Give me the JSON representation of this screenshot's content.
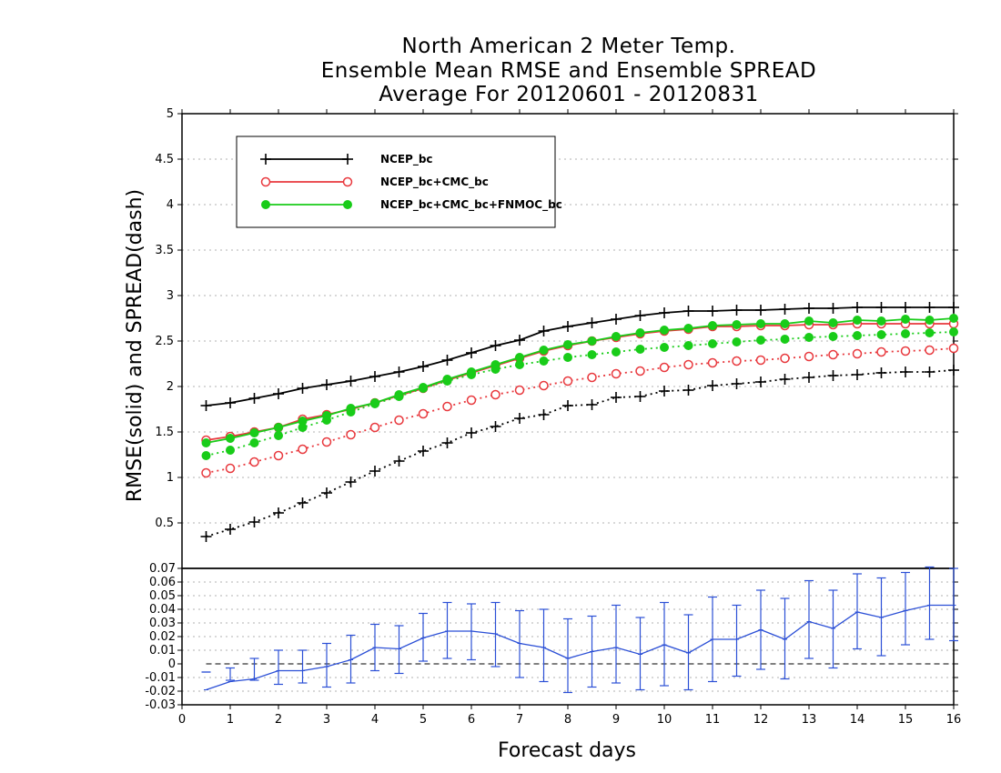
{
  "title_lines": [
    "North American 2 Meter Temp.",
    "Ensemble Mean RMSE and Ensemble SPREAD",
    "Average For 20120601 - 20120831"
  ],
  "chart_data": [
    {
      "type": "line",
      "title": "North American 2 Meter Temp. Ensemble Mean RMSE and Ensemble SPREAD Average For 20120601 - 20120831",
      "ylabel": "RMSE(solid) and SPREAD(dash)",
      "xlabel": "",
      "xlim": [
        0,
        16
      ],
      "ylim": [
        0.5,
        5
      ],
      "yticks": [
        0.5,
        1,
        1.5,
        2,
        2.5,
        3,
        3.5,
        4,
        4.5,
        5
      ],
      "grid": true,
      "legend_position": "top-left",
      "x": [
        0.5,
        1,
        1.5,
        2,
        2.5,
        3,
        3.5,
        4,
        4.5,
        5,
        5.5,
        6,
        6.5,
        7,
        7.5,
        8,
        8.5,
        9,
        9.5,
        10,
        10.5,
        11,
        11.5,
        12,
        12.5,
        13,
        13.5,
        14,
        14.5,
        15,
        15.5,
        16
      ],
      "series": [
        {
          "name": "NCEP_bc",
          "metric": "RMSE",
          "style": "solid",
          "marker": "plus",
          "color": "#000000",
          "values": [
            1.79,
            1.82,
            1.87,
            1.92,
            1.98,
            2.02,
            2.06,
            2.11,
            2.16,
            2.22,
            2.29,
            2.37,
            2.45,
            2.51,
            2.61,
            2.66,
            2.7,
            2.74,
            2.78,
            2.81,
            2.83,
            2.83,
            2.84,
            2.84,
            2.85,
            2.86,
            2.86,
            2.87,
            2.87,
            2.87,
            2.87,
            2.87
          ]
        },
        {
          "name": "NCEP_bc+CMC_bc",
          "metric": "RMSE",
          "style": "solid",
          "marker": "open-circle",
          "color": "#e8383d",
          "values": [
            1.41,
            1.45,
            1.5,
            1.55,
            1.64,
            1.69,
            1.75,
            1.82,
            1.9,
            1.98,
            2.07,
            2.15,
            2.23,
            2.31,
            2.39,
            2.45,
            2.5,
            2.54,
            2.58,
            2.61,
            2.63,
            2.66,
            2.66,
            2.67,
            2.67,
            2.68,
            2.68,
            2.69,
            2.69,
            2.69,
            2.69,
            2.69
          ]
        },
        {
          "name": "NCEP_bc+CMC_bc+FNMOC_bc",
          "metric": "RMSE",
          "style": "solid",
          "marker": "filled-circle",
          "color": "#19cc19",
          "values": [
            1.38,
            1.43,
            1.49,
            1.55,
            1.62,
            1.68,
            1.76,
            1.82,
            1.91,
            1.99,
            2.08,
            2.16,
            2.24,
            2.32,
            2.4,
            2.46,
            2.5,
            2.55,
            2.59,
            2.62,
            2.64,
            2.67,
            2.68,
            2.69,
            2.69,
            2.72,
            2.7,
            2.73,
            2.72,
            2.74,
            2.73,
            2.75
          ]
        },
        {
          "name": "NCEP_bc",
          "metric": "SPREAD",
          "style": "dash",
          "marker": "plus",
          "color": "#000000",
          "values": [
            0.35,
            0.43,
            0.51,
            0.61,
            0.72,
            0.83,
            0.95,
            1.07,
            1.18,
            1.29,
            1.38,
            1.49,
            1.56,
            1.65,
            1.69,
            1.79,
            1.8,
            1.88,
            1.89,
            1.95,
            1.96,
            2.01,
            2.03,
            2.05,
            2.08,
            2.1,
            2.12,
            2.13,
            2.15,
            2.16,
            2.16,
            2.18
          ]
        },
        {
          "name": "NCEP_bc+CMC_bc",
          "metric": "SPREAD",
          "style": "dash",
          "marker": "open-circle",
          "color": "#e8383d",
          "values": [
            1.05,
            1.1,
            1.17,
            1.24,
            1.31,
            1.39,
            1.47,
            1.55,
            1.63,
            1.7,
            1.78,
            1.85,
            1.91,
            1.96,
            2.01,
            2.06,
            2.1,
            2.14,
            2.17,
            2.21,
            2.24,
            2.26,
            2.28,
            2.29,
            2.31,
            2.33,
            2.35,
            2.36,
            2.38,
            2.39,
            2.4,
            2.42
          ]
        },
        {
          "name": "NCEP_bc+CMC_bc+FNMOC_bc",
          "metric": "SPREAD",
          "style": "dash",
          "marker": "filled-circle",
          "color": "#19cc19",
          "values": [
            1.24,
            1.3,
            1.38,
            1.46,
            1.55,
            1.63,
            1.72,
            1.81,
            1.89,
            1.98,
            2.06,
            2.13,
            2.19,
            2.24,
            2.28,
            2.32,
            2.35,
            2.38,
            2.41,
            2.43,
            2.45,
            2.47,
            2.49,
            2.51,
            2.52,
            2.54,
            2.55,
            2.56,
            2.57,
            2.58,
            2.59,
            2.6
          ]
        }
      ]
    },
    {
      "type": "line",
      "xlabel": "Forecast days",
      "xlim": [
        0,
        16
      ],
      "xticks": [
        0,
        1,
        2,
        3,
        4,
        5,
        6,
        7,
        8,
        9,
        10,
        11,
        12,
        13,
        14,
        15,
        16
      ],
      "ylim": [
        -0.03,
        0.07
      ],
      "yticks": [
        -0.03,
        -0.02,
        -0.01,
        0,
        0.01,
        0.02,
        0.03,
        0.04,
        0.05,
        0.06,
        0.07
      ],
      "ytick_labels": [
        "-0.03",
        "-0.02",
        "-0.01",
        "0",
        "0.01",
        "0.02",
        "0.03",
        "0.04",
        "0.05",
        "0.06",
        "0.07"
      ],
      "grid": true,
      "zero_line": "dash",
      "series": [
        {
          "color": "#2b4fd6",
          "style": "solid",
          "marker": "plus",
          "error_bars": true,
          "x": [
            0.5,
            1,
            1.5,
            2,
            2.5,
            3,
            3.5,
            4,
            4.5,
            5,
            5.5,
            6,
            6.5,
            7,
            7.5,
            8,
            8.5,
            9,
            9.5,
            10,
            10.5,
            11,
            11.5,
            12,
            12.5,
            13,
            13.5,
            14,
            14.5,
            15,
            15.5,
            16
          ],
          "values": [
            -0.019,
            -0.013,
            -0.011,
            -0.005,
            -0.005,
            -0.002,
            0.003,
            0.012,
            0.011,
            0.019,
            0.024,
            0.024,
            0.022,
            0.015,
            0.012,
            0.004,
            0.009,
            0.012,
            0.007,
            0.014,
            0.008,
            0.018,
            0.018,
            0.025,
            0.018,
            0.031,
            0.026,
            0.038,
            0.034,
            0.039,
            0.043,
            0.043
          ],
          "lower": [
            -0.006,
            -0.012,
            -0.012,
            -0.015,
            -0.014,
            -0.017,
            -0.014,
            -0.005,
            -0.007,
            0.002,
            0.004,
            0.003,
            -0.002,
            -0.01,
            -0.013,
            -0.021,
            -0.017,
            -0.014,
            -0.019,
            -0.016,
            -0.019,
            -0.013,
            -0.009,
            -0.004,
            -0.011,
            0.004,
            -0.003,
            0.011,
            0.006,
            0.014,
            0.018,
            0.017
          ],
          "upper": [
            -0.006,
            -0.003,
            0.004,
            0.01,
            0.01,
            0.015,
            0.021,
            0.029,
            0.028,
            0.037,
            0.045,
            0.044,
            0.045,
            0.039,
            0.04,
            0.033,
            0.035,
            0.043,
            0.034,
            0.045,
            0.036,
            0.049,
            0.043,
            0.054,
            0.048,
            0.061,
            0.054,
            0.066,
            0.063,
            0.067,
            0.071,
            0.07
          ]
        }
      ]
    }
  ]
}
